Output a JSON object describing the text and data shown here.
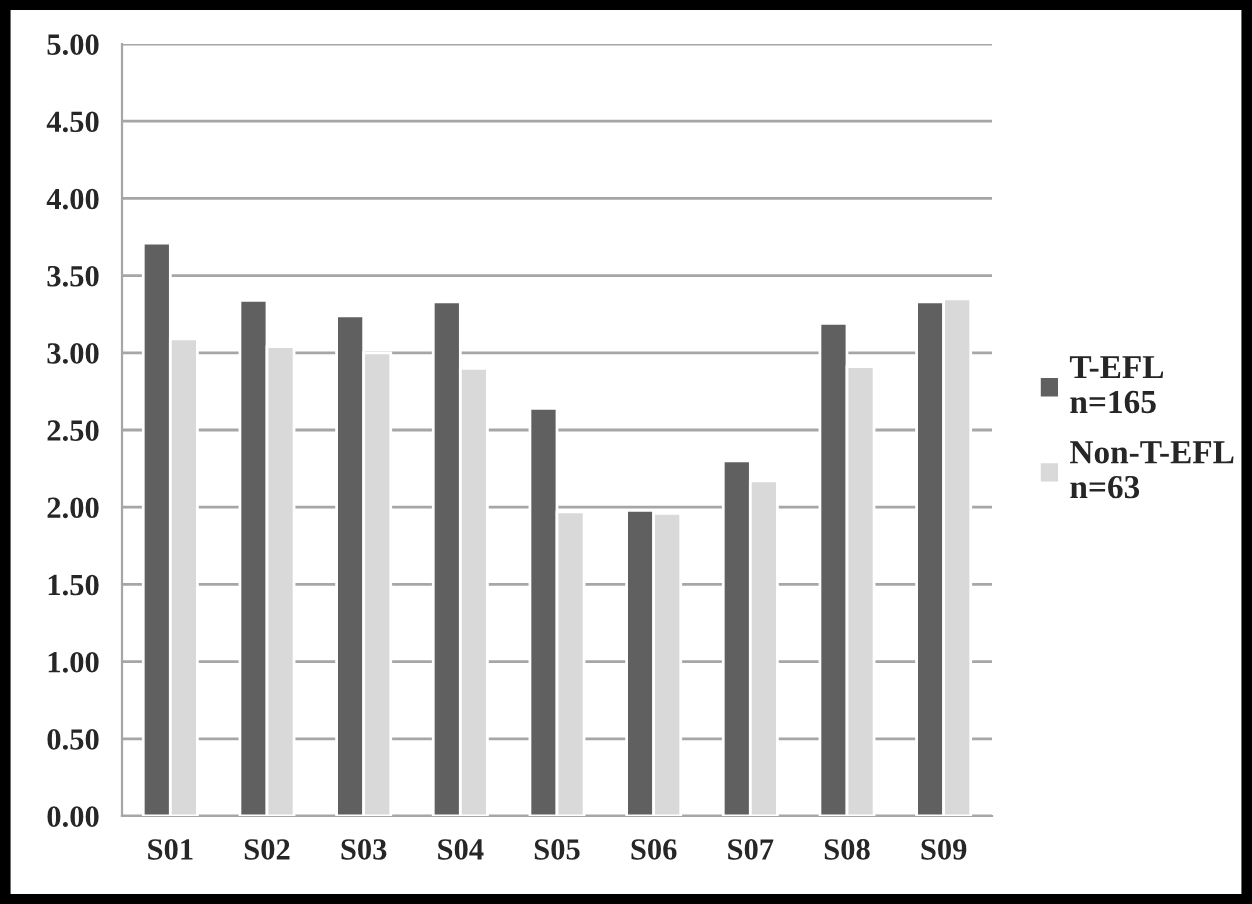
{
  "chart_data": {
    "type": "bar",
    "categories": [
      "S01",
      "S02",
      "S03",
      "S04",
      "S05",
      "S06",
      "S07",
      "S08",
      "S09"
    ],
    "series": [
      {
        "name": "T-EFL\nn=165",
        "color": "#606060",
        "values": [
          3.71,
          3.34,
          3.24,
          3.33,
          2.64,
          1.98,
          2.3,
          3.19,
          3.33
        ]
      },
      {
        "name": "Non-T-EFL\nn=63",
        "color": "#d9d9d9",
        "values": [
          3.09,
          3.04,
          3.0,
          2.9,
          1.97,
          1.96,
          2.17,
          2.91,
          3.35
        ]
      }
    ],
    "ylim": [
      0,
      5
    ],
    "yticks": [
      {
        "value": 0,
        "label": "0.00"
      },
      {
        "value": 0.5,
        "label": "0.50"
      },
      {
        "value": 1,
        "label": "1.00"
      },
      {
        "value": 1.5,
        "label": "1.50"
      },
      {
        "value": 2,
        "label": "2.00"
      },
      {
        "value": 2.5,
        "label": "2.50"
      },
      {
        "value": 3,
        "label": "3.00"
      },
      {
        "value": 3.5,
        "label": "3.50"
      },
      {
        "value": 4,
        "label": "4.00"
      },
      {
        "value": 4.5,
        "label": "4.50"
      },
      {
        "value": 5,
        "label": "5.00"
      }
    ],
    "grid": "y",
    "legend": "right"
  }
}
